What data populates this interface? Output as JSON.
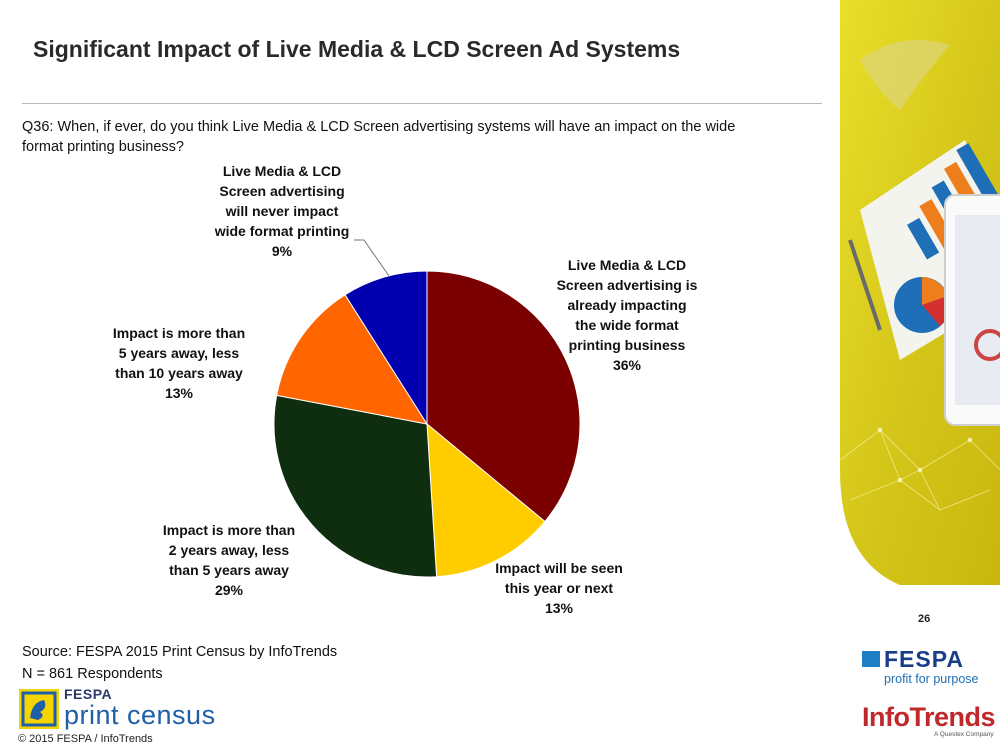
{
  "slide": {
    "title": "Significant Impact of Live Media & LCD Screen Ad Systems",
    "question": "Q36: When, if ever, do you think Live Media & LCD Screen advertising systems will have an impact on the wide format printing business?",
    "source": "Source: FESPA 2015 Print Census by InfoTrends",
    "respondents": "N = 861 Respondents",
    "page_number": "26",
    "copyright": "© 2015 FESPA  / InfoTrends"
  },
  "logos": {
    "census_top": "FESPA",
    "census_bottom": "print census",
    "fespa_name": "FESPA",
    "fespa_tagline": "profit for purpose",
    "infotrends_name": "InfoTrends",
    "infotrends_sub": "A Questex Company"
  },
  "colors": {
    "already": "#7b0000",
    "this_year": "#ffcc00",
    "two_to_five": "#0f2d0f",
    "five_to_ten": "#ff6600",
    "never": "#0000b0",
    "accent_yellow": "#e8dd1f"
  },
  "chart_data": {
    "type": "pie",
    "title": "",
    "start_angle_deg": 0,
    "direction": "clockwise",
    "slices": [
      {
        "key": "already",
        "label_lines": [
          "Live Media & LCD",
          "Screen advertising is",
          "already impacting",
          "the wide format",
          "printing business"
        ],
        "percent_label": "36%",
        "value": 36
      },
      {
        "key": "this_year",
        "label_lines": [
          "Impact will be seen",
          "this year or next"
        ],
        "percent_label": "13%",
        "value": 13
      },
      {
        "key": "two_to_five",
        "label_lines": [
          "Impact is more than",
          "2 years away, less",
          "than 5 years away"
        ],
        "percent_label": "29%",
        "value": 29
      },
      {
        "key": "five_to_ten",
        "label_lines": [
          "Impact is more than",
          "5 years away, less",
          "than 10 years away"
        ],
        "percent_label": "13%",
        "value": 13
      },
      {
        "key": "never",
        "label_lines": [
          "Live Media & LCD",
          "Screen advertising",
          "will never impact",
          "wide format printing"
        ],
        "percent_label": "9%",
        "value": 9
      }
    ]
  }
}
